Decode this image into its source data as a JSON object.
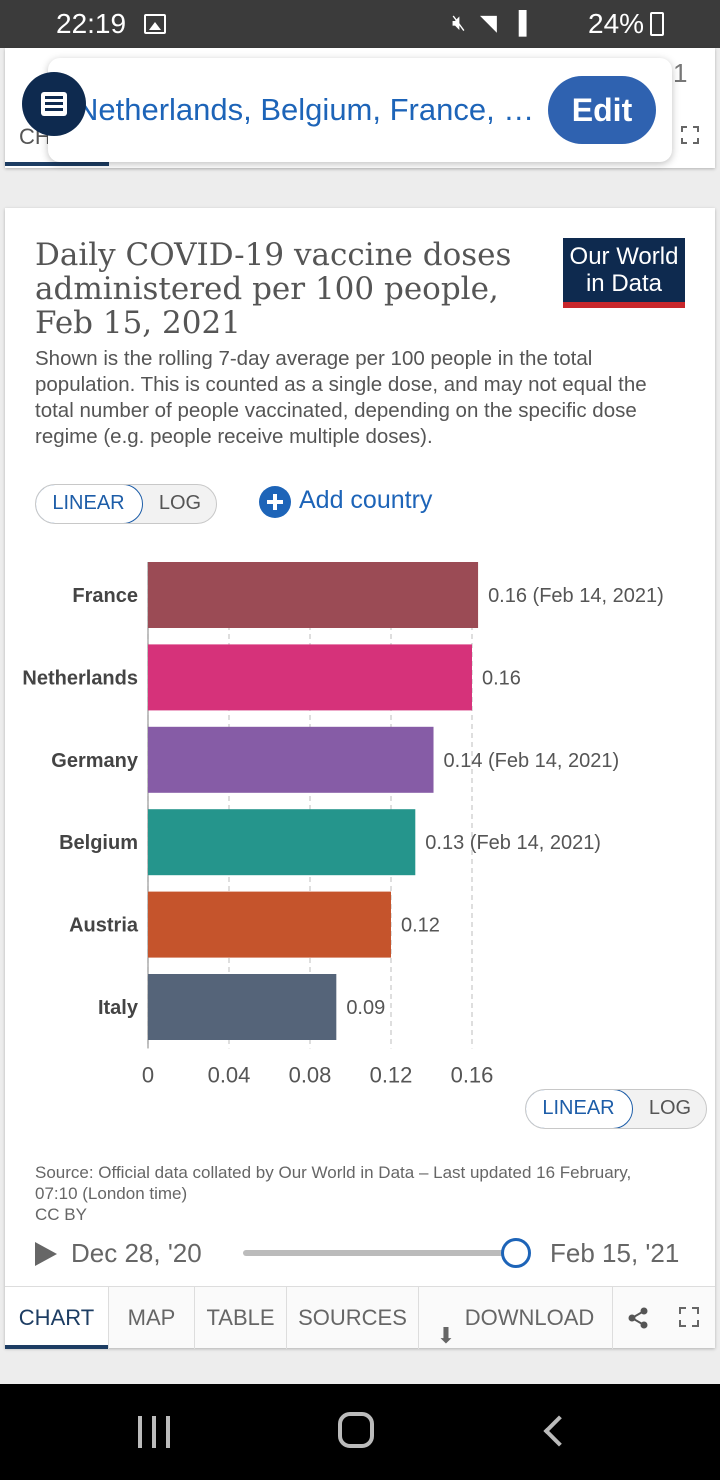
{
  "status_bar": {
    "time": "22:19",
    "battery": "24%"
  },
  "selector": {
    "countries_label": "Netherlands, Belgium, France, …",
    "edit_label": "Edit",
    "partial_tab": "CH",
    "partial_digit": "1"
  },
  "chart_header": {
    "title": "Daily COVID-19 vaccine doses administered per 100 people, Feb 15, 2021",
    "subtitle": "Shown is the rolling 7-day average per 100 people in the total population. This is counted as a single dose, and may not equal the total number of people vaccinated, depending on the specific dose regime (e.g. people receive multiple doses).",
    "logo_line1": "Our World",
    "logo_line2": "in Data"
  },
  "scale_toggle": {
    "linear": "LINEAR",
    "log": "LOG",
    "active": "linear"
  },
  "add_country": "Add country",
  "chart_data": {
    "type": "bar",
    "orientation": "horizontal",
    "categories": [
      "France",
      "Netherlands",
      "Germany",
      "Belgium",
      "Austria",
      "Italy"
    ],
    "values": [
      0.163,
      0.16,
      0.141,
      0.132,
      0.12,
      0.093
    ],
    "value_labels": [
      "0.16 (Feb 14, 2021)",
      "0.16",
      "0.14 (Feb 14, 2021)",
      "0.13 (Feb 14, 2021)",
      "0.12",
      "0.09"
    ],
    "colors": [
      "#9b4b55",
      "#d6327a",
      "#865ca6",
      "#25958c",
      "#c5542c",
      "#556479"
    ],
    "xlim": [
      0,
      0.16
    ],
    "xticks": [
      0,
      0.04,
      0.08,
      0.12,
      0.16
    ],
    "xtick_labels": [
      "0",
      "0.04",
      "0.08",
      "0.12",
      "0.16"
    ],
    "grid": true
  },
  "source": {
    "line1": "Source: Official data collated by Our World in Data – Last updated 16 February, 07:10 (London time)",
    "line2": "CC BY"
  },
  "timeline": {
    "start": "Dec 28, '20",
    "end": "Feb 15, '21",
    "position": 1.0
  },
  "tabs": [
    "CHART",
    "MAP",
    "TABLE",
    "SOURCES",
    "DOWNLOAD"
  ],
  "active_tab": "CHART"
}
